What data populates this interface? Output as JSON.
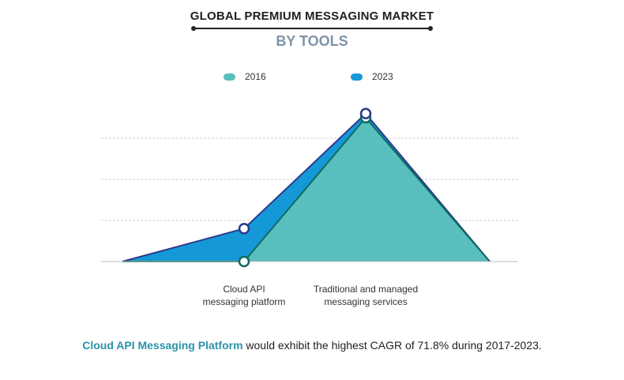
{
  "header": {
    "title": "GLOBAL PREMIUM MESSAGING MARKET",
    "subtitle": "BY TOOLS"
  },
  "footer": {
    "highlight": "Cloud API Messaging Platform",
    "rest": " would exhibit the highest CAGR of 71.8% during 2017-2023."
  },
  "chart_data": {
    "type": "area",
    "categories": [
      "",
      "Cloud API\nmessaging platform",
      "Traditional and managed\nmessaging services",
      ""
    ],
    "series": [
      {
        "name": "2016",
        "color": "#58bfbe",
        "stroke": "#0e6b5e",
        "values": [
          0,
          0,
          3.5,
          0
        ]
      },
      {
        "name": "2023",
        "color": "#1598d8",
        "stroke": "#2c3a8c",
        "values": [
          0,
          0.8,
          3.6,
          0
        ]
      }
    ],
    "ylim": [
      0,
      3
    ],
    "grid": true,
    "legend_position": "top"
  }
}
